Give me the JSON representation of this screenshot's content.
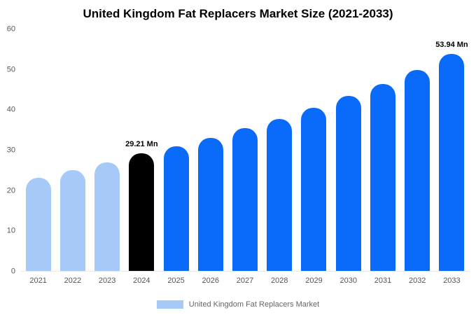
{
  "title": "United Kingdom Fat Replacers Market Size (2021-2033)",
  "chart_data": {
    "type": "bar",
    "title": "United Kingdom Fat Replacers Market Size (2021-2033)",
    "xlabel": "",
    "ylabel": "",
    "ylim": [
      0,
      60
    ],
    "yticks": [
      0,
      10,
      20,
      30,
      40,
      50,
      60
    ],
    "grid": false,
    "categories": [
      "2021",
      "2022",
      "2023",
      "2024",
      "2025",
      "2026",
      "2027",
      "2028",
      "2029",
      "2030",
      "2031",
      "2032",
      "2033"
    ],
    "values": [
      23.2,
      25.1,
      26.9,
      29.21,
      31,
      33,
      35.4,
      37.8,
      40.6,
      43.5,
      46.5,
      50,
      53.94
    ],
    "bar_colors": [
      "#a6c9f8",
      "#a6c9f8",
      "#a6c9f8",
      "#000000",
      "#0a6bfb",
      "#0a6bfb",
      "#0a6bfb",
      "#0a6bfb",
      "#0a6bfb",
      "#0a6bfb",
      "#0a6bfb",
      "#0a6bfb",
      "#0a6bfb"
    ],
    "annotations": [
      {
        "index": 3,
        "text": "29.21 Mn"
      },
      {
        "index": 12,
        "text": "53.94 Mn"
      }
    ],
    "legend": {
      "position": "bottom",
      "swatch_color": "#a6c9f8",
      "label": "United Kingdom Fat Replacers Market"
    }
  },
  "colors": {
    "historical_bar": "#a6c9f8",
    "base_year_bar": "#000000",
    "forecast_bar": "#0a6bfb",
    "axis_text": "#555555",
    "legend_text": "#666666",
    "background": "#ffffff"
  }
}
